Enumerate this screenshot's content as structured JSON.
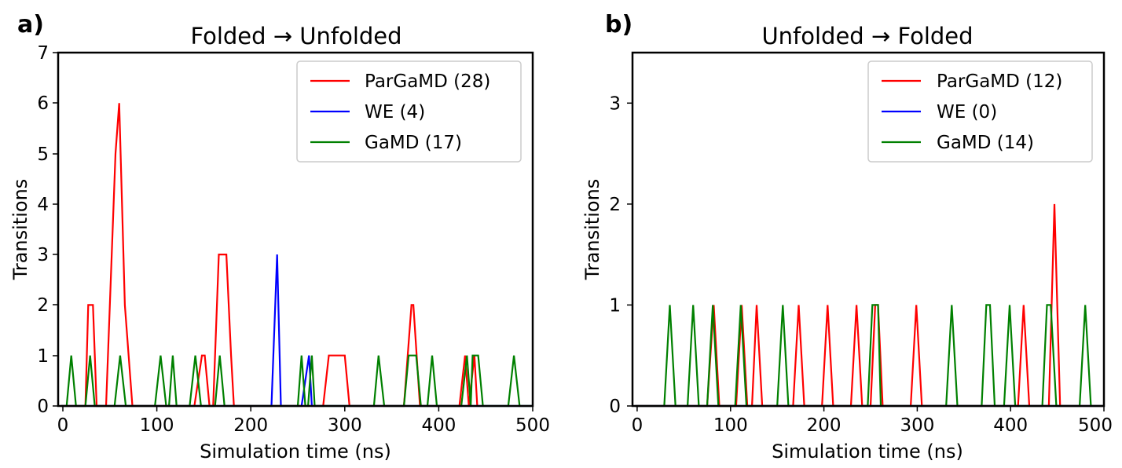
{
  "chart_data": [
    {
      "panel": "a)",
      "type": "line",
      "title": "Folded → Unfolded",
      "xlabel": "Simulation time (ns)",
      "ylabel": "Transitions",
      "xlim": [
        -5,
        500
      ],
      "ylim": [
        0,
        7
      ],
      "xticks": [
        0,
        100,
        200,
        300,
        400,
        500
      ],
      "yticks": [
        0,
        1,
        2,
        3,
        4,
        5,
        6,
        7
      ],
      "legend_position": "top-right",
      "grid": false,
      "series": [
        {
          "name": "ParGaMD (28)",
          "color": "#ff0000",
          "x": [
            -2,
            24,
            27,
            32,
            36,
            46,
            56,
            60,
            66,
            74,
            140,
            148,
            151,
            156,
            160,
            166,
            169,
            174,
            179,
            182,
            277,
            283,
            287,
            296,
            300,
            305,
            363,
            371,
            373,
            380,
            422,
            428,
            432,
            438,
            441
          ],
          "y": [
            0,
            0,
            2,
            2,
            0,
            0,
            5,
            6,
            2,
            0,
            0,
            1,
            1,
            0,
            0,
            3,
            3,
            3,
            1,
            0,
            0,
            1,
            1,
            1,
            1,
            0,
            0,
            2,
            2,
            0,
            0,
            1,
            0,
            1,
            0
          ]
        },
        {
          "name": "WE (4)",
          "color": "#0000ff",
          "x": [
            -2,
            222,
            228,
            232,
            254,
            262,
            265,
            500
          ],
          "y": [
            0,
            0,
            3,
            0,
            0,
            1,
            0,
            0
          ]
        },
        {
          "name": "GaMD (17)",
          "color": "#008000",
          "x": [
            -2,
            4,
            9,
            14,
            24,
            29,
            34,
            55,
            61,
            67,
            98,
            104,
            110,
            113,
            117,
            121,
            135,
            141,
            147,
            162,
            167,
            172,
            250,
            254,
            258,
            261,
            265,
            268,
            331,
            336,
            342,
            363,
            368,
            373,
            376,
            381,
            388,
            393,
            398,
            424,
            430,
            434,
            436,
            442,
            447,
            453,
            474,
            480,
            486,
            500
          ],
          "y": [
            0,
            0,
            1,
            0,
            0,
            1,
            0,
            0,
            1,
            0,
            0,
            1,
            0,
            0,
            1,
            0,
            0,
            1,
            0,
            0,
            1,
            0,
            0,
            1,
            0,
            0,
            1,
            0,
            0,
            1,
            0,
            0,
            1,
            1,
            1,
            0,
            0,
            1,
            0,
            0,
            1,
            0,
            1,
            1,
            0,
            0,
            0,
            1,
            0,
            0
          ]
        }
      ]
    },
    {
      "panel": "b)",
      "type": "line",
      "title": "Unfolded → Folded",
      "xlabel": "Simulation time (ns)",
      "ylabel": "Transitions",
      "xlim": [
        -5,
        500
      ],
      "ylim": [
        0,
        3.5
      ],
      "xticks": [
        0,
        100,
        200,
        300,
        400,
        500
      ],
      "yticks": [
        0,
        1,
        2,
        3
      ],
      "legend_position": "top-right",
      "grid": false,
      "series": [
        {
          "name": "ParGaMD (12)",
          "color": "#ff0000",
          "x": [
            -2,
            75,
            82,
            88,
            106,
            112,
            118,
            123,
            128,
            134,
            167,
            173,
            179,
            198,
            204,
            210,
            229,
            235,
            241,
            250,
            255,
            258,
            263,
            293,
            299,
            305,
            408,
            414,
            420,
            441,
            447,
            453,
            500
          ],
          "y": [
            0,
            0,
            1,
            0,
            0,
            1,
            0,
            0,
            1,
            0,
            0,
            1,
            0,
            0,
            1,
            0,
            0,
            1,
            0,
            0,
            1,
            1,
            0,
            0,
            1,
            0,
            0,
            1,
            0,
            0,
            2,
            0,
            0
          ]
        },
        {
          "name": "WE (0)",
          "color": "#0000ff",
          "x": [
            -2,
            500
          ],
          "y": [
            0,
            0
          ]
        },
        {
          "name": "GaMD (14)",
          "color": "#008000",
          "x": [
            -2,
            29,
            35,
            41,
            54,
            60,
            66,
            75,
            81,
            87,
            105,
            111,
            117,
            150,
            156,
            162,
            247,
            252,
            258,
            261,
            331,
            337,
            343,
            369,
            374,
            378,
            383,
            393,
            399,
            405,
            434,
            439,
            443,
            449,
            474,
            480,
            486,
            500
          ],
          "y": [
            0,
            0,
            1,
            0,
            0,
            1,
            0,
            0,
            1,
            0,
            0,
            1,
            0,
            0,
            1,
            0,
            0,
            1,
            1,
            0,
            0,
            1,
            0,
            0,
            1,
            1,
            0,
            0,
            1,
            0,
            0,
            1,
            1,
            0,
            0,
            1,
            0,
            0
          ]
        }
      ]
    }
  ]
}
